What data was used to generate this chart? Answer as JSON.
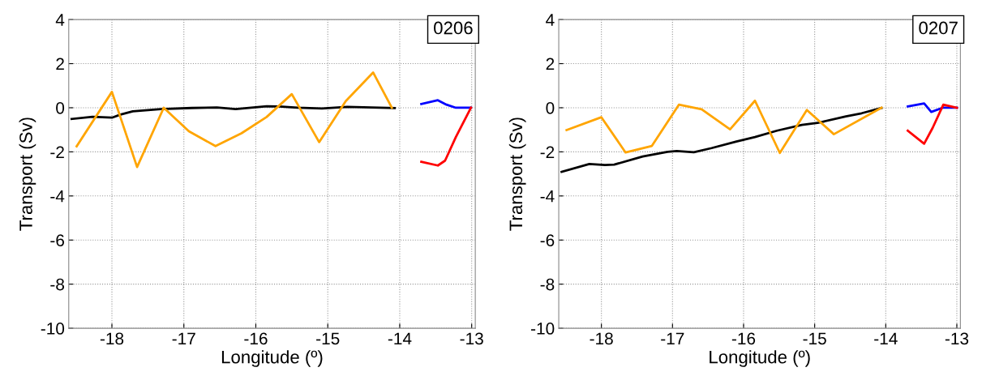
{
  "chart_data": [
    {
      "type": "line",
      "xlabel": "Longitude (º)",
      "ylabel": "Transport (Sv)",
      "annotations": [
        "0206"
      ],
      "xlim": [
        -18.6,
        -12.95
      ],
      "xticks": [
        -18,
        -17,
        -16,
        -15,
        -14,
        -13
      ],
      "ylim": [
        -10,
        4
      ],
      "yticks": [
        -10,
        -8,
        -6,
        -4,
        -2,
        0,
        2,
        4
      ],
      "grid": true,
      "line_style": "solid",
      "series": [
        {
          "color": "#000000",
          "x": [
            -18.56,
            -18.27,
            -18.0,
            -17.88,
            -17.71,
            -17.32,
            -16.89,
            -16.54,
            -16.28,
            -15.85,
            -15.68,
            -15.42,
            -15.08,
            -14.73,
            -14.39,
            -14.07
          ],
          "values": [
            -0.51,
            -0.41,
            -0.45,
            -0.31,
            -0.16,
            -0.06,
            -0.01,
            0.01,
            -0.06,
            0.07,
            0.06,
            0.0,
            -0.03,
            0.04,
            0.01,
            -0.01
          ]
        },
        {
          "color": "#ffa500",
          "x": [
            -18.49,
            -18.0,
            -17.65,
            -17.28,
            -16.93,
            -16.56,
            -16.2,
            -15.85,
            -15.5,
            -15.12,
            -14.75,
            -14.37,
            -14.11
          ],
          "values": [
            -1.75,
            0.72,
            -2.69,
            0.0,
            -1.07,
            -1.74,
            -1.16,
            -0.42,
            0.62,
            -1.56,
            0.3,
            1.6,
            0.0
          ]
        },
        {
          "color": "#0000ff",
          "x": [
            -13.7,
            -13.47,
            -13.35,
            -13.22,
            -13.01
          ],
          "values": [
            0.17,
            0.34,
            0.14,
            0.0,
            0.0
          ]
        },
        {
          "color": "#ff0000",
          "x": [
            -13.7,
            -13.47,
            -13.37,
            -13.22,
            -13.01
          ],
          "values": [
            -2.45,
            -2.62,
            -2.4,
            -1.33,
            0.0
          ]
        }
      ]
    },
    {
      "type": "line",
      "xlabel": "Longitude (º)",
      "ylabel": "Transport (Sv)",
      "annotations": [
        "0207"
      ],
      "xlim": [
        -18.6,
        -12.95
      ],
      "xticks": [
        -18,
        -17,
        -16,
        -15,
        -14,
        -13
      ],
      "ylim": [
        -10,
        4
      ],
      "yticks": [
        -10,
        -8,
        -6,
        -4,
        -2,
        0,
        2,
        4
      ],
      "grid": true,
      "line_style": "solid",
      "series": [
        {
          "color": "#000000",
          "x": [
            -18.56,
            -18.17,
            -17.95,
            -17.82,
            -17.42,
            -17.07,
            -16.94,
            -16.7,
            -16.45,
            -16.1,
            -15.84,
            -15.53,
            -15.18,
            -14.96,
            -14.56,
            -14.34,
            -14.06
          ],
          "values": [
            -2.91,
            -2.55,
            -2.6,
            -2.58,
            -2.21,
            -2.0,
            -1.96,
            -2.02,
            -1.83,
            -1.53,
            -1.33,
            -1.04,
            -0.78,
            -0.69,
            -0.39,
            -0.25,
            -0.01
          ]
        },
        {
          "color": "#ffa500",
          "x": [
            -18.49,
            -18.0,
            -17.66,
            -17.29,
            -16.91,
            -16.59,
            -16.19,
            -15.84,
            -15.49,
            -15.11,
            -14.73,
            -14.06
          ],
          "values": [
            -1.01,
            -0.43,
            -2.03,
            -1.73,
            0.14,
            -0.07,
            -0.98,
            0.32,
            -2.05,
            -0.1,
            -1.2,
            0.0
          ]
        },
        {
          "color": "#0000ff",
          "x": [
            -13.69,
            -13.46,
            -13.36,
            -13.2,
            -13.0
          ],
          "values": [
            0.06,
            0.2,
            -0.19,
            0.0,
            0.0
          ]
        },
        {
          "color": "#ff0000",
          "x": [
            -13.69,
            -13.46,
            -13.34,
            -13.19,
            -13.0
          ],
          "values": [
            -1.04,
            -1.63,
            -0.91,
            0.14,
            0.0
          ]
        }
      ]
    }
  ]
}
